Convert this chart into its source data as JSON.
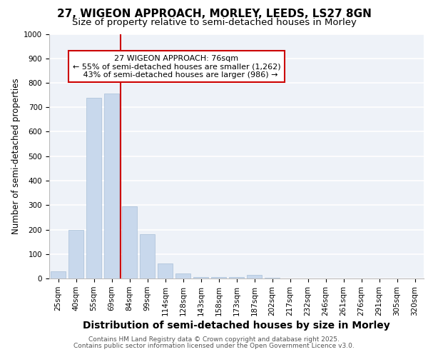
{
  "title1": "27, WIGEON APPROACH, MORLEY, LEEDS, LS27 8GN",
  "title2": "Size of property relative to semi-detached houses in Morley",
  "xlabel": "Distribution of semi-detached houses by size in Morley",
  "ylabel": "Number of semi-detached properties",
  "categories": [
    "25sqm",
    "40sqm",
    "55sqm",
    "69sqm",
    "84sqm",
    "99sqm",
    "114sqm",
    "128sqm",
    "143sqm",
    "158sqm",
    "173sqm",
    "187sqm",
    "202sqm",
    "217sqm",
    "232sqm",
    "246sqm",
    "261sqm",
    "276sqm",
    "291sqm",
    "305sqm",
    "320sqm"
  ],
  "values": [
    30,
    200,
    740,
    755,
    295,
    180,
    60,
    20,
    5,
    5,
    5,
    15,
    2,
    1,
    1,
    1,
    0,
    0,
    0,
    0,
    0
  ],
  "bar_color": "#c8d8ec",
  "bar_edge_color": "#a8c0d8",
  "vline_x": 3.5,
  "vline_color": "#cc0000",
  "annotation_text": "27 WIGEON APPROACH: 76sqm\n← 55% of semi-detached houses are smaller (1,262)\n   43% of semi-detached houses are larger (986) →",
  "annotation_box_color": "#ffffff",
  "annotation_box_edge": "#cc0000",
  "ylim": [
    0,
    1000
  ],
  "yticks": [
    0,
    100,
    200,
    300,
    400,
    500,
    600,
    700,
    800,
    900,
    1000
  ],
  "background_color": "#eef2f8",
  "grid_color": "#ffffff",
  "footer1": "Contains HM Land Registry data © Crown copyright and database right 2025.",
  "footer2": "Contains public sector information licensed under the Open Government Licence v3.0.",
  "title1_fontsize": 11,
  "title2_fontsize": 9.5,
  "xlabel_fontsize": 10,
  "ylabel_fontsize": 8.5,
  "tick_fontsize": 7.5,
  "footer_fontsize": 6.5,
  "annot_fontsize": 8
}
